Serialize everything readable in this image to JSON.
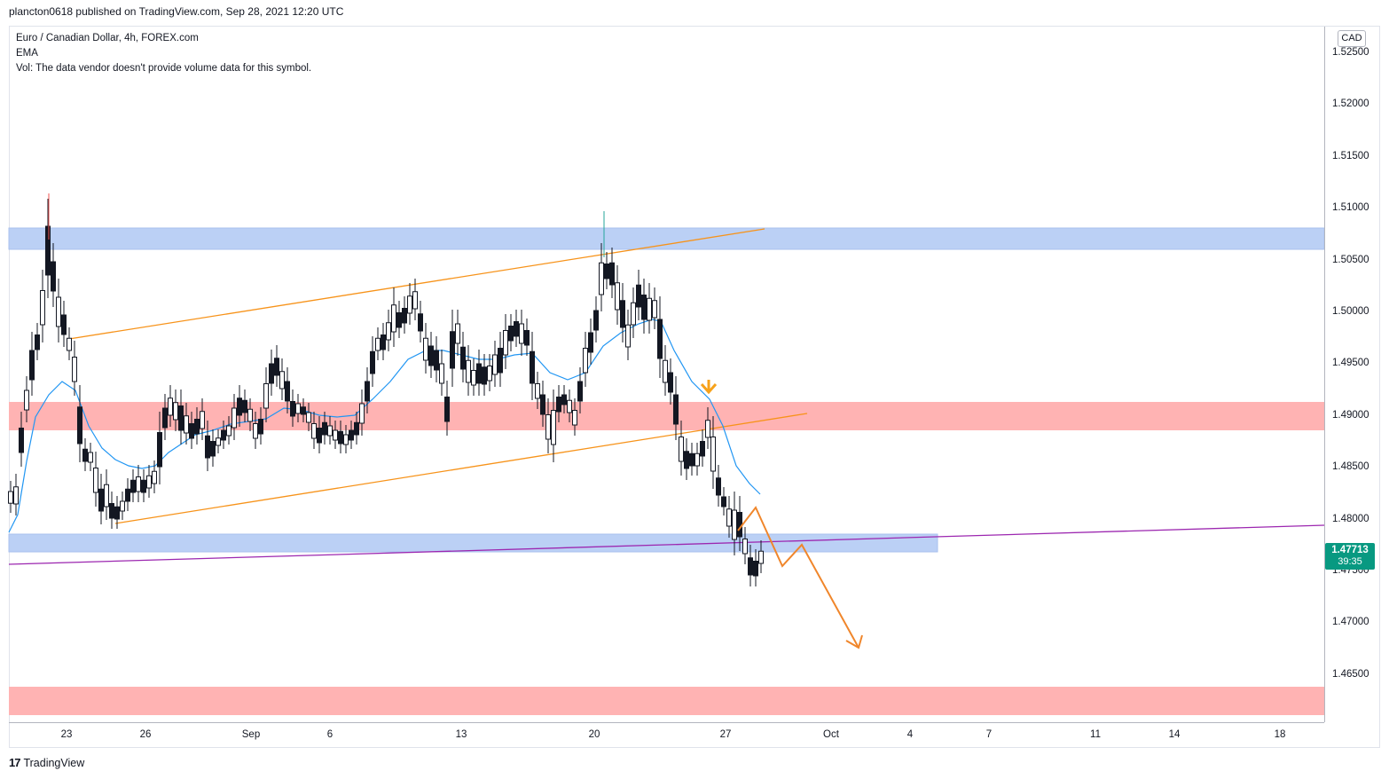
{
  "header": {
    "published": "plancton0618 published on TradingView.com, Sep 28, 2021 12:20 UTC"
  },
  "legend": {
    "symbol": "Euro / Canadian Dollar, 4h, FOREX.com",
    "ema": "EMA",
    "vol": "Vol: The data vendor doesn't provide volume data for this symbol."
  },
  "price_axis": {
    "currency": "CAD",
    "labels": [
      "1.52500",
      "1.52000",
      "1.51500",
      "1.51000",
      "1.50500",
      "1.50000",
      "1.49500",
      "1.49000",
      "1.48500",
      "1.48000",
      "1.47500",
      "1.47000",
      "1.46500"
    ],
    "last_price": "1.47713",
    "countdown": "39:35"
  },
  "time_axis": {
    "labels": [
      "23",
      "26",
      "Sep",
      "6",
      "13",
      "20",
      "27",
      "Oct",
      "4",
      "7",
      "11",
      "14",
      "18"
    ]
  },
  "colors": {
    "up": "#26a69a",
    "down": "#ef5350",
    "candle": "#131722",
    "ema": "#2196f3",
    "channel": "#f7931a",
    "trendline": "#9c27b0",
    "zone_blue": "#bbd0f5",
    "zone_red": "#ffb3b3",
    "projection": "#f0862b"
  },
  "footer": {
    "brand": "TradingView",
    "logo_icon": "tradingview-logo-icon"
  }
}
